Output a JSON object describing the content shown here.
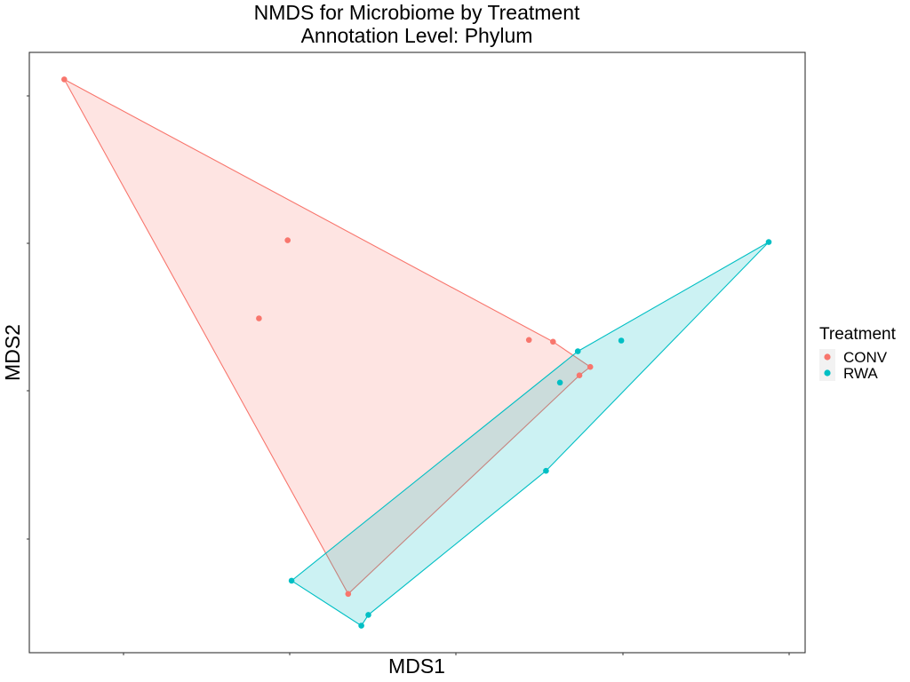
{
  "chart_data": {
    "type": "scatter",
    "title": "NMDS for Microbiome by Treatment",
    "subtitle": "Annotation Level: Phylum",
    "xlabel": "MDS1",
    "ylabel": "MDS2",
    "xlim": [
      0,
      1
    ],
    "ylim": [
      0,
      1
    ],
    "grid": false,
    "tick_labels_shown": false,
    "hulls": true,
    "legend": {
      "title": "Treatment",
      "position": "right"
    },
    "series": [
      {
        "name": "CONV",
        "color": "#F8766D",
        "fill": "#FDE0DE",
        "points": [
          {
            "x": 0.045,
            "y": 0.955
          },
          {
            "x": 0.333,
            "y": 0.687
          },
          {
            "x": 0.296,
            "y": 0.557
          },
          {
            "x": 0.644,
            "y": 0.521
          },
          {
            "x": 0.675,
            "y": 0.518
          },
          {
            "x": 0.723,
            "y": 0.476
          },
          {
            "x": 0.709,
            "y": 0.462
          },
          {
            "x": 0.411,
            "y": 0.098
          }
        ],
        "hull": [
          0,
          4,
          5,
          6,
          7
        ]
      },
      {
        "name": "RWA",
        "color": "#00BFC4",
        "fill": "#CCF0F2",
        "points": [
          {
            "x": 0.953,
            "y": 0.684
          },
          {
            "x": 0.763,
            "y": 0.52
          },
          {
            "x": 0.707,
            "y": 0.502
          },
          {
            "x": 0.684,
            "y": 0.45
          },
          {
            "x": 0.666,
            "y": 0.303
          },
          {
            "x": 0.338,
            "y": 0.12
          },
          {
            "x": 0.437,
            "y": 0.063
          },
          {
            "x": 0.428,
            "y": 0.045
          }
        ],
        "hull": [
          0,
          2,
          5,
          7,
          6,
          4
        ]
      }
    ]
  }
}
